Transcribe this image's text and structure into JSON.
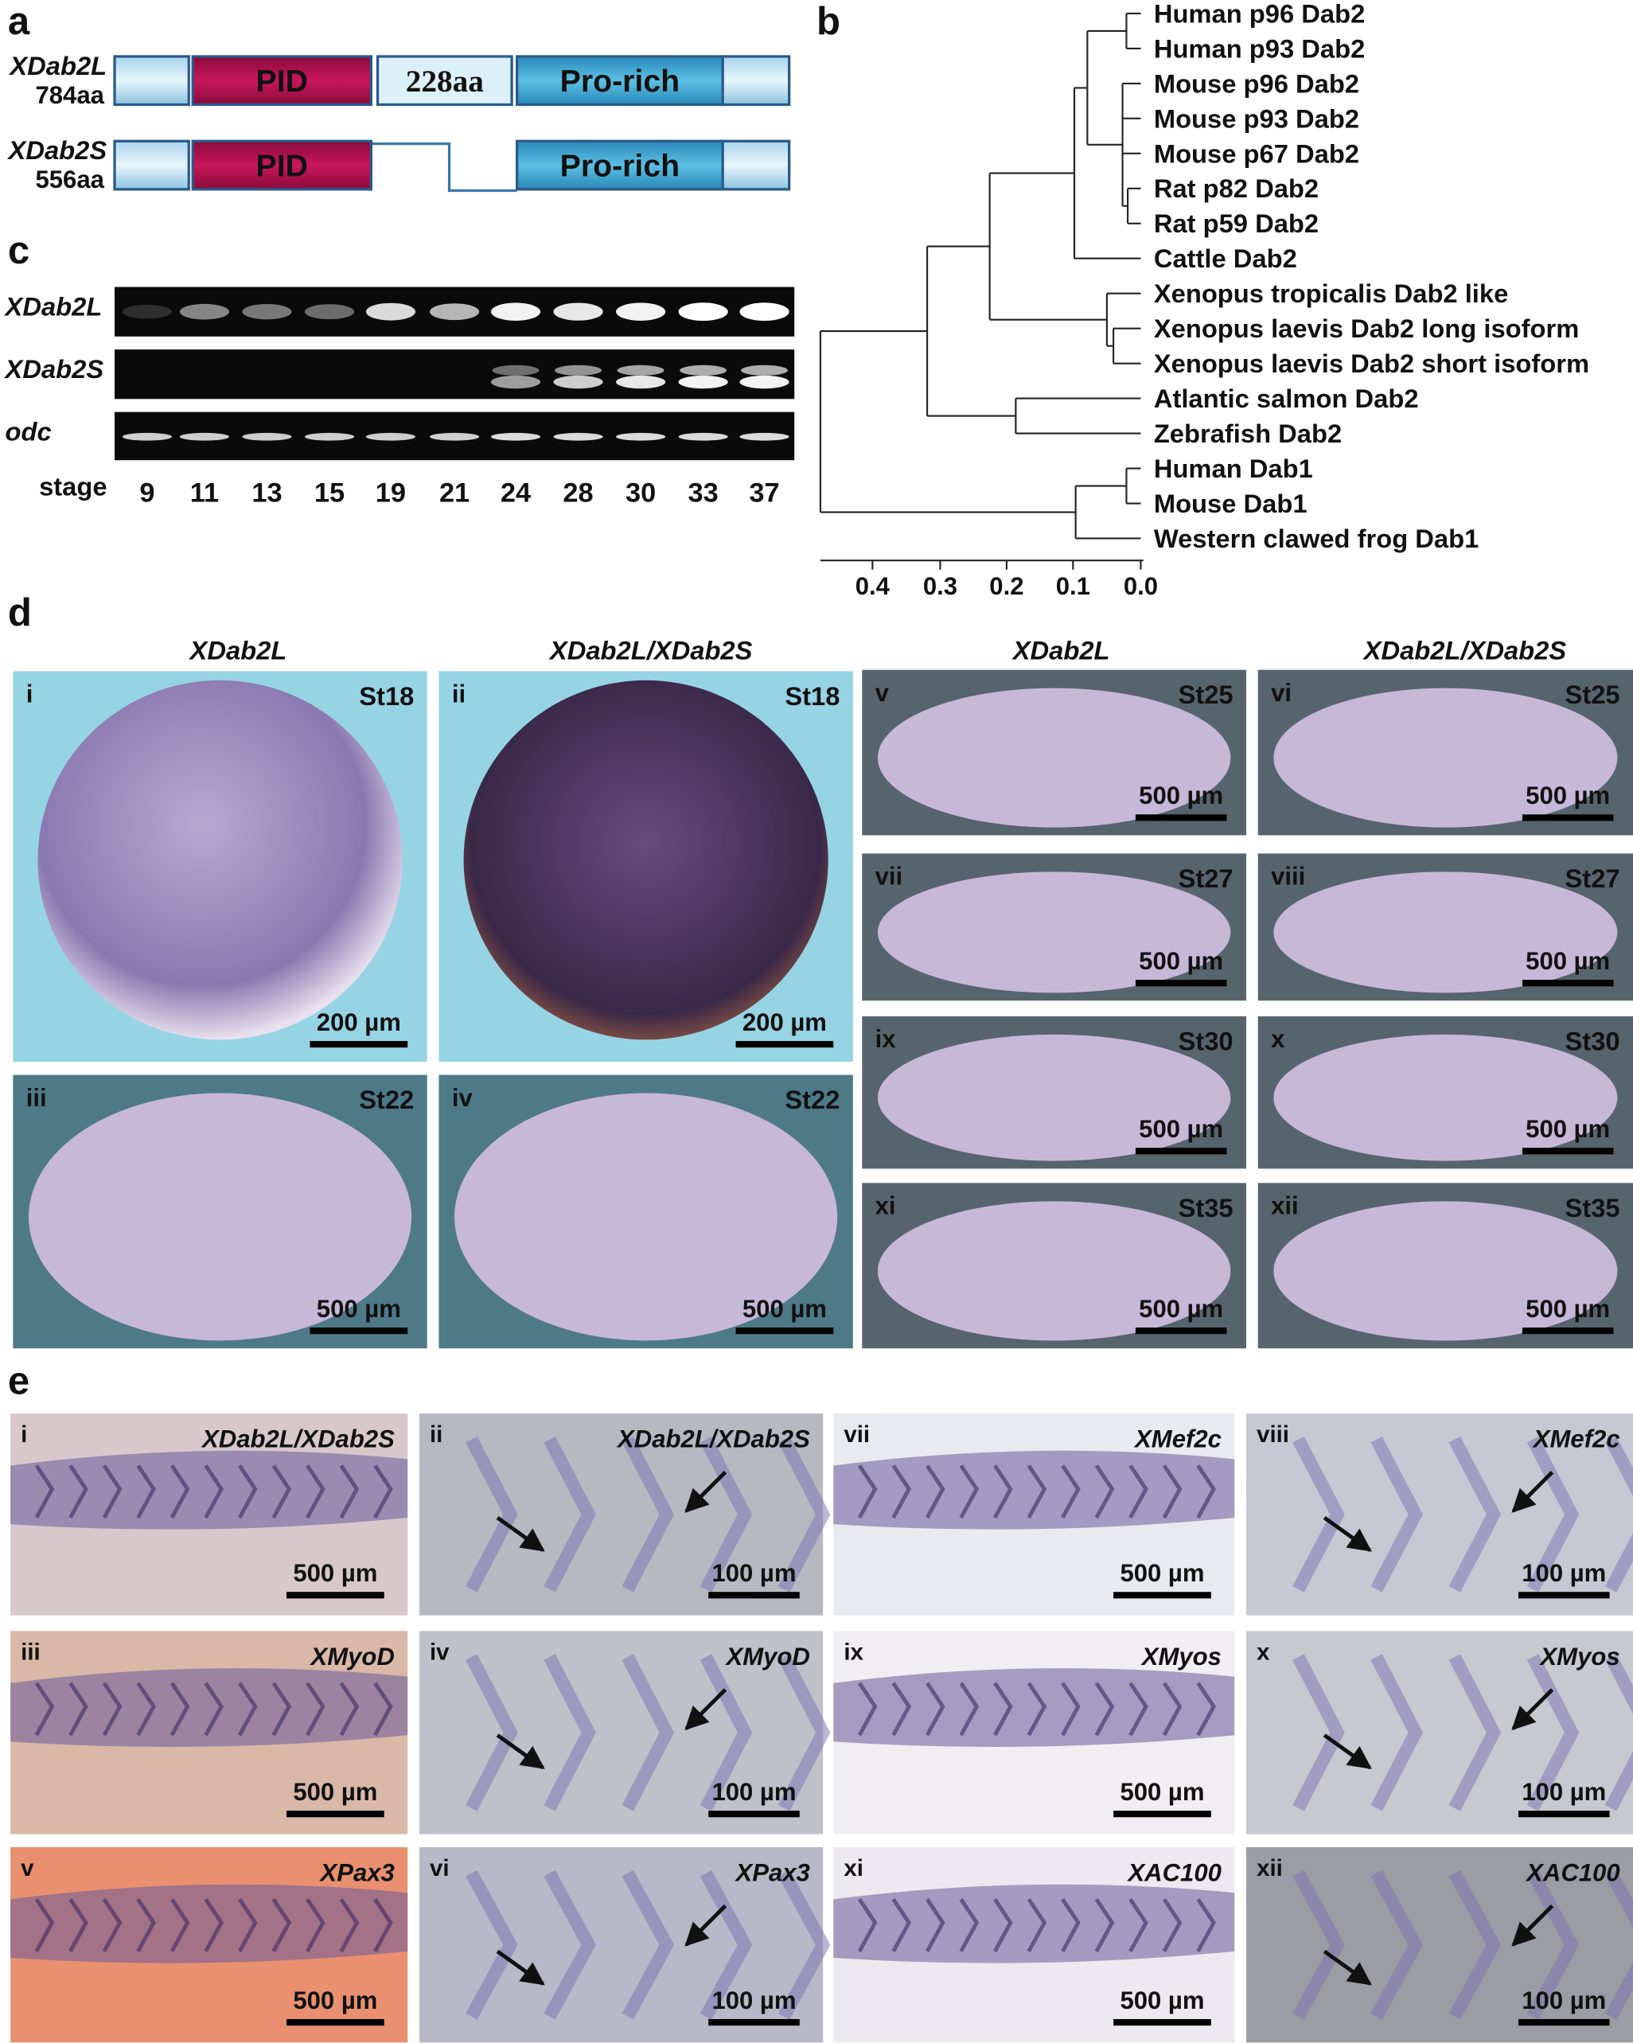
{
  "panel_a": {
    "label": "a",
    "proteins": [
      {
        "name": "XDab2L",
        "length": "784aa",
        "domains": [
          "PID",
          "228aa",
          "Pro-rich"
        ]
      },
      {
        "name": "XDab2S",
        "length": "556aa",
        "domains": [
          "PID",
          "Pro-rich"
        ]
      }
    ]
  },
  "panel_b": {
    "label": "b",
    "taxa": [
      "Human p96 Dab2",
      "Human p93 Dab2",
      "Mouse p96 Dab2",
      "Mouse p93 Dab2",
      "Mouse p67 Dab2",
      "Rat p82 Dab2",
      "Rat p59 Dab2",
      "Cattle Dab2",
      "Xenopus tropicalis Dab2 like",
      "Xenopus laevis Dab2 long isoform",
      "Xenopus laevis Dab2 short isoform",
      "Atlantic salmon Dab2",
      "Zebrafish Dab2",
      "Human Dab1",
      "Mouse Dab1",
      "Western clawed frog Dab1"
    ],
    "axis_ticks": [
      "0.4",
      "0.3",
      "0.2",
      "0.1",
      "0.0"
    ]
  },
  "panel_c": {
    "label": "c",
    "genes": [
      "XDab2L",
      "XDab2S",
      "odc"
    ],
    "stage_label": "stage",
    "stages": [
      "9",
      "11",
      "13",
      "15",
      "19",
      "21",
      "24",
      "28",
      "30",
      "33",
      "37"
    ]
  },
  "panel_d": {
    "label": "d",
    "column_headers": [
      "XDab2L",
      "XDab2L/XDab2S",
      "XDab2L",
      "XDab2L/XDab2S"
    ],
    "images": [
      {
        "numeral": "i",
        "stage": "St18",
        "scale": "200 µm"
      },
      {
        "numeral": "ii",
        "stage": "St18",
        "scale": "200 µm"
      },
      {
        "numeral": "iii",
        "stage": "St22",
        "scale": "500 µm"
      },
      {
        "numeral": "iv",
        "stage": "St22",
        "scale": "500 µm"
      },
      {
        "numeral": "v",
        "stage": "St25",
        "scale": "500 µm"
      },
      {
        "numeral": "vi",
        "stage": "St25",
        "scale": "500 µm"
      },
      {
        "numeral": "vii",
        "stage": "St27",
        "scale": "500 µm"
      },
      {
        "numeral": "viii",
        "stage": "St27",
        "scale": "500 µm"
      },
      {
        "numeral": "ix",
        "stage": "St30",
        "scale": "500 µm"
      },
      {
        "numeral": "x",
        "stage": "St30",
        "scale": "500 µm"
      },
      {
        "numeral": "xi",
        "stage": "St35",
        "scale": "500 µm"
      },
      {
        "numeral": "xii",
        "stage": "St35",
        "scale": "500 µm"
      }
    ]
  },
  "panel_e": {
    "label": "e",
    "images": [
      {
        "numeral": "i",
        "gene": "XDab2L/XDab2S",
        "scale": "500 µm"
      },
      {
        "numeral": "ii",
        "gene": "XDab2L/XDab2S",
        "scale": "100 µm"
      },
      {
        "numeral": "vii",
        "gene": "XMef2c",
        "scale": "500 µm"
      },
      {
        "numeral": "viii",
        "gene": "XMef2c",
        "scale": "100 µm"
      },
      {
        "numeral": "iii",
        "gene": "XMyoD",
        "scale": "500 µm"
      },
      {
        "numeral": "iv",
        "gene": "XMyoD",
        "scale": "100 µm"
      },
      {
        "numeral": "ix",
        "gene": "XMyos",
        "scale": "500 µm"
      },
      {
        "numeral": "x",
        "gene": "XMyos",
        "scale": "100 µm"
      },
      {
        "numeral": "v",
        "gene": "XPax3",
        "scale": "500 µm"
      },
      {
        "numeral": "vi",
        "gene": "XPax3",
        "scale": "100 µm"
      },
      {
        "numeral": "xi",
        "gene": "XAC100",
        "scale": "500 µm"
      },
      {
        "numeral": "xii",
        "gene": "XAC100",
        "scale": "100 µm"
      }
    ]
  }
}
